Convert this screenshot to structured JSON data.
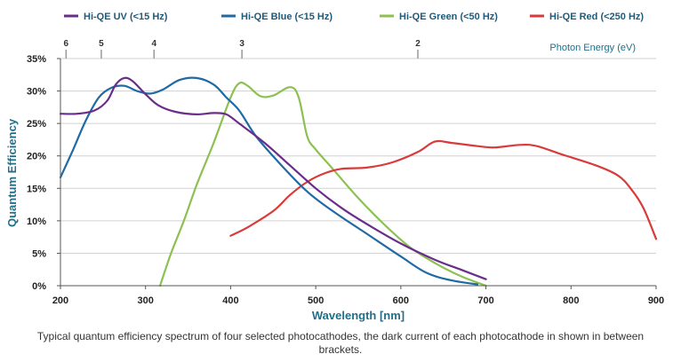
{
  "chart_data": {
    "type": "line",
    "title": "",
    "xlabel": "Wavelength [nm]",
    "ylabel": "Quantum Efficiency",
    "top_axis_label": "Photon Energy (eV)",
    "xlim": [
      200,
      900
    ],
    "ylim": [
      0,
      35
    ],
    "x_ticks": [
      200,
      300,
      400,
      500,
      600,
      700,
      800,
      900
    ],
    "y_ticks": [
      "0%",
      "5%",
      "10%",
      "15%",
      "20%",
      "25%",
      "30%",
      "35%"
    ],
    "top_ticks": [
      {
        "label": "6",
        "wavelength": 206.6
      },
      {
        "label": "5",
        "wavelength": 248
      },
      {
        "label": "4",
        "wavelength": 310
      },
      {
        "label": "3",
        "wavelength": 413.3
      },
      {
        "label": "2",
        "wavelength": 620
      }
    ],
    "grid": "horizontal",
    "legend_position": "top",
    "series": [
      {
        "name": "Hi-QE UV (<15 Hz)",
        "color": "#6b2d8a",
        "points": [
          [
            200,
            26.5
          ],
          [
            220,
            26.5
          ],
          [
            240,
            27
          ],
          [
            255,
            28.5
          ],
          [
            265,
            31
          ],
          [
            275,
            32
          ],
          [
            285,
            31.5
          ],
          [
            300,
            29.5
          ],
          [
            315,
            27.8
          ],
          [
            335,
            26.8
          ],
          [
            360,
            26.4
          ],
          [
            380,
            26.6
          ],
          [
            395,
            26.4
          ],
          [
            410,
            25
          ],
          [
            440,
            22
          ],
          [
            470,
            18.5
          ],
          [
            500,
            15
          ],
          [
            530,
            12
          ],
          [
            560,
            9.5
          ],
          [
            600,
            6.5
          ],
          [
            640,
            4
          ],
          [
            670,
            2.5
          ],
          [
            700,
            1
          ]
        ]
      },
      {
        "name": "Hi-QE Blue (<15 Hz)",
        "color": "#1f6aa5",
        "points": [
          [
            200,
            16.7
          ],
          [
            215,
            21
          ],
          [
            230,
            25.5
          ],
          [
            245,
            29
          ],
          [
            260,
            30.5
          ],
          [
            275,
            30.8
          ],
          [
            290,
            30
          ],
          [
            305,
            29.6
          ],
          [
            320,
            30.2
          ],
          [
            340,
            31.7
          ],
          [
            360,
            32
          ],
          [
            380,
            31
          ],
          [
            395,
            29
          ],
          [
            410,
            27
          ],
          [
            430,
            23
          ],
          [
            460,
            18.5
          ],
          [
            490,
            14.5
          ],
          [
            520,
            11.5
          ],
          [
            560,
            8
          ],
          [
            600,
            4.5
          ],
          [
            630,
            2
          ],
          [
            660,
            0.8
          ],
          [
            690,
            0.2
          ]
        ]
      },
      {
        "name": "Hi-QE Green (<50 Hz)",
        "color": "#8cc152",
        "points": [
          [
            317,
            0
          ],
          [
            330,
            5
          ],
          [
            345,
            10
          ],
          [
            360,
            15.5
          ],
          [
            380,
            22
          ],
          [
            400,
            29
          ],
          [
            410,
            31.2
          ],
          [
            420,
            30.8
          ],
          [
            435,
            29.2
          ],
          [
            450,
            29.3
          ],
          [
            470,
            30.6
          ],
          [
            480,
            29
          ],
          [
            490,
            23
          ],
          [
            500,
            21
          ],
          [
            520,
            18
          ],
          [
            550,
            13.5
          ],
          [
            580,
            9.5
          ],
          [
            610,
            6
          ],
          [
            640,
            3.5
          ],
          [
            670,
            1.5
          ],
          [
            700,
            0
          ]
        ]
      },
      {
        "name": "Hi-QE Red (<250 Hz)",
        "color": "#d93a3a",
        "points": [
          [
            400,
            7.7
          ],
          [
            420,
            9
          ],
          [
            450,
            11.5
          ],
          [
            470,
            14
          ],
          [
            490,
            16
          ],
          [
            510,
            17.3
          ],
          [
            530,
            18
          ],
          [
            560,
            18.2
          ],
          [
            590,
            19
          ],
          [
            620,
            20.6
          ],
          [
            640,
            22.2
          ],
          [
            660,
            22
          ],
          [
            690,
            21.5
          ],
          [
            710,
            21.3
          ],
          [
            740,
            21.7
          ],
          [
            760,
            21.5
          ],
          [
            790,
            20.2
          ],
          [
            830,
            18.5
          ],
          [
            855,
            17
          ],
          [
            870,
            15
          ],
          [
            885,
            12
          ],
          [
            900,
            7.2
          ]
        ]
      }
    ]
  },
  "caption": "Typical quantum efficiency spectrum of four selected photocathodes, the dark current of each photocathode in shown in between brackets."
}
